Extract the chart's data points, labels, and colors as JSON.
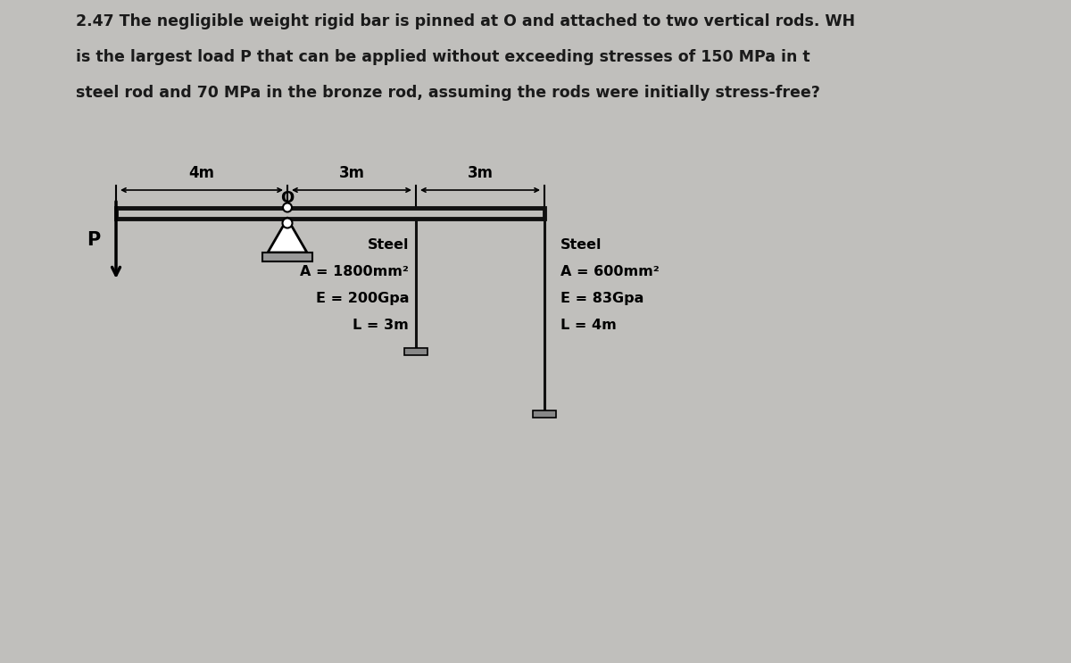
{
  "bg_color": "#c0bfbc",
  "text_color": "#1a1a1a",
  "title_lines": [
    "2.47 The negligible weight rigid bar is pinned at O and attached to two vertical rods. WH",
    "is the largest load P that can be applied without exceeding stresses of 150 MPa in t",
    "steel rod and 70 MPa in the bronze rod, assuming the rods were initially stress-free?"
  ],
  "dim_labels": [
    "4m",
    "3m",
    "3m"
  ],
  "pin_label": "O",
  "left_rod_label": [
    "Steel",
    "A = 1800mm²",
    "E = 200Gpa",
    "L = 3m"
  ],
  "right_rod_label": [
    "Steel",
    "A = 600mm²",
    "E = 83Gpa",
    "L = 4m"
  ],
  "load_label": "P",
  "bar_color": "#111111",
  "rod_color": "#111111",
  "plate_color": "#888888"
}
